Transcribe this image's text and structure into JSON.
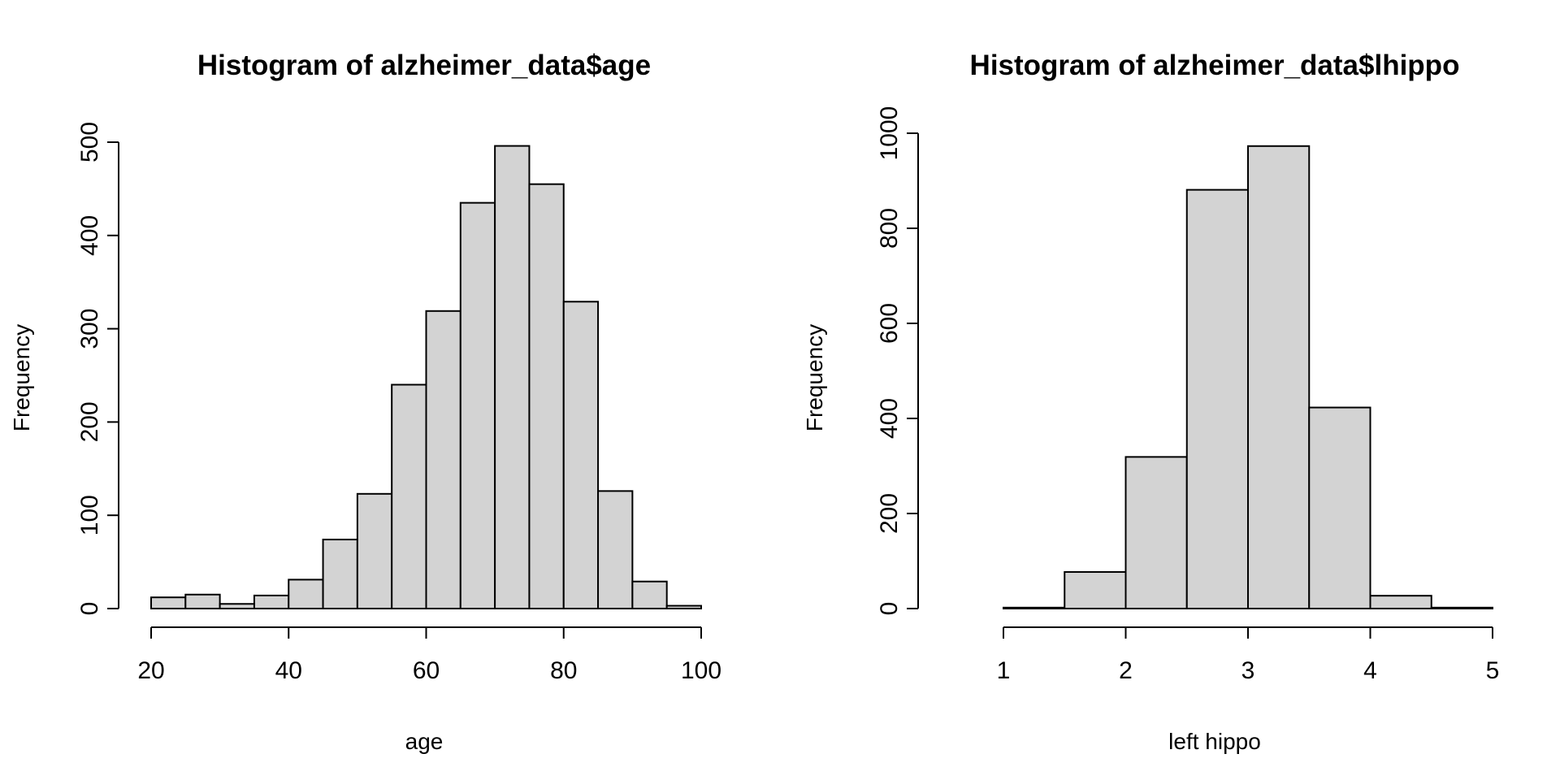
{
  "chart_data": [
    {
      "type": "bar",
      "title": "Histogram of alzheimer_data$age",
      "xlabel": "age",
      "ylabel": "Frequency",
      "xlim": [
        20,
        100
      ],
      "ylim": [
        0,
        500
      ],
      "x_ticks": [
        "20",
        "40",
        "60",
        "80",
        "100"
      ],
      "y_ticks": [
        "0",
        "100",
        "200",
        "300",
        "400",
        "500"
      ],
      "grid": false,
      "bar_fill": "#d3d3d3",
      "bar_stroke": "#000000",
      "bins": [
        {
          "start": 20,
          "end": 25,
          "value": 12
        },
        {
          "start": 25,
          "end": 30,
          "value": 15
        },
        {
          "start": 30,
          "end": 35,
          "value": 5
        },
        {
          "start": 35,
          "end": 40,
          "value": 14
        },
        {
          "start": 40,
          "end": 45,
          "value": 31
        },
        {
          "start": 45,
          "end": 50,
          "value": 74
        },
        {
          "start": 50,
          "end": 55,
          "value": 123
        },
        {
          "start": 55,
          "end": 60,
          "value": 240
        },
        {
          "start": 60,
          "end": 65,
          "value": 319
        },
        {
          "start": 65,
          "end": 70,
          "value": 435
        },
        {
          "start": 70,
          "end": 75,
          "value": 496
        },
        {
          "start": 75,
          "end": 80,
          "value": 455
        },
        {
          "start": 80,
          "end": 85,
          "value": 329
        },
        {
          "start": 85,
          "end": 90,
          "value": 126
        },
        {
          "start": 90,
          "end": 95,
          "value": 29
        },
        {
          "start": 95,
          "end": 100,
          "value": 3
        }
      ]
    },
    {
      "type": "bar",
      "title": "Histogram of alzheimer_data$lhippo",
      "xlabel": "left hippo",
      "ylabel": "Frequency",
      "xlim": [
        1,
        5
      ],
      "ylim": [
        0,
        1000
      ],
      "x_ticks": [
        "1",
        "2",
        "3",
        "4",
        "5"
      ],
      "y_ticks": [
        "0",
        "200",
        "400",
        "600",
        "800",
        "1000"
      ],
      "grid": false,
      "bar_fill": "#d3d3d3",
      "bar_stroke": "#000000",
      "bins": [
        {
          "start": 0.5,
          "end": 1.0,
          "value": 0
        },
        {
          "start": 1.0,
          "end": 1.5,
          "value": 2
        },
        {
          "start": 1.5,
          "end": 2.0,
          "value": 77
        },
        {
          "start": 2.0,
          "end": 2.5,
          "value": 319
        },
        {
          "start": 2.5,
          "end": 3.0,
          "value": 881
        },
        {
          "start": 3.0,
          "end": 3.5,
          "value": 973
        },
        {
          "start": 3.5,
          "end": 4.0,
          "value": 423
        },
        {
          "start": 4.0,
          "end": 4.5,
          "value": 27
        },
        {
          "start": 4.5,
          "end": 5.0,
          "value": 2
        }
      ]
    }
  ]
}
